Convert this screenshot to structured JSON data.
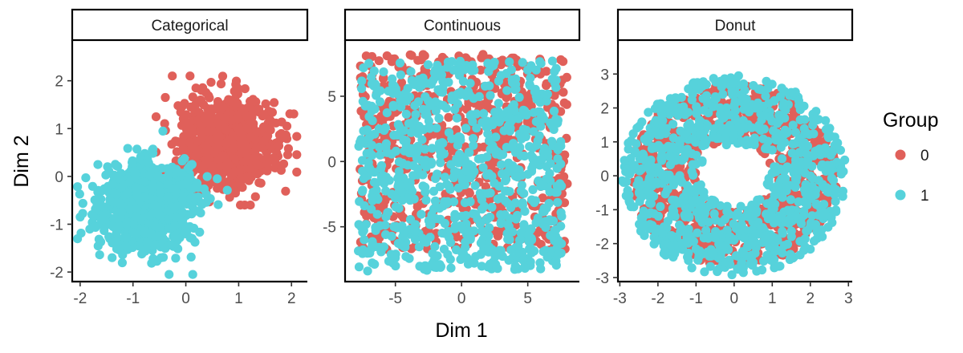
{
  "chart_data": {
    "type": "scatter",
    "xlabel": "Dim 1",
    "ylabel": "Dim 2",
    "legend": {
      "title": "Group",
      "placement": "right",
      "entries": [
        {
          "label": "0",
          "color": "#E0605A"
        },
        {
          "label": "1",
          "color": "#56D2DB"
        }
      ]
    },
    "panels": [
      {
        "title": "Categorical",
        "xlim": [
          -2.15,
          2.3
        ],
        "ylim": [
          -2.2,
          2.85
        ],
        "xticks": [
          -2,
          -1,
          0,
          1,
          2
        ],
        "yticks": [
          -2,
          -1,
          0,
          1,
          2
        ],
        "series": [
          {
            "group": "0",
            "color": "#E0605A",
            "distribution": "gaussian",
            "n": 900,
            "center": [
              0.8,
              0.7
            ],
            "sd": [
              0.45,
              0.45
            ],
            "extent": {
              "x": [
                -0.7,
                2.1
              ],
              "y": [
                -0.6,
                2.1
              ]
            }
          },
          {
            "group": "1",
            "color": "#56D2DB",
            "distribution": "gaussian",
            "n": 900,
            "center": [
              -0.75,
              -0.6
            ],
            "sd": [
              0.45,
              0.45
            ],
            "extent": {
              "x": [
                -2.05,
                0.8
              ],
              "y": [
                -2.05,
                1.3
              ]
            }
          }
        ]
      },
      {
        "title": "Continuous",
        "xlim": [
          -8.8,
          8.9
        ],
        "ylim": [
          -9.2,
          9.3
        ],
        "xticks": [
          -5,
          0,
          5
        ],
        "yticks": [
          -5,
          0,
          5
        ],
        "series": [
          {
            "group": "0",
            "color": "#E0605A",
            "distribution": "uniform",
            "n": 700,
            "extent": {
              "x": [
                -7.7,
                8.0
              ],
              "y": [
                -6.8,
                8.2
              ]
            }
          },
          {
            "group": "1",
            "color": "#56D2DB",
            "distribution": "uniform",
            "n": 800,
            "extent": {
              "x": [
                -7.8,
                7.6
              ],
              "y": [
                -8.4,
                7.7
              ]
            }
          }
        ]
      },
      {
        "title": "Donut",
        "xlim": [
          -3.05,
          3.1
        ],
        "ylim": [
          -3.12,
          4.0
        ],
        "xticks": [
          -3,
          -2,
          -1,
          0,
          1,
          2,
          3
        ],
        "yticks": [
          -3,
          -2,
          -1,
          0,
          1,
          2,
          3
        ],
        "series": [
          {
            "group": "0",
            "color": "#E0605A",
            "distribution": "annulus",
            "n": 900,
            "center": [
              0,
              0
            ],
            "radius": [
              1.0,
              2.7
            ]
          },
          {
            "group": "1",
            "color": "#56D2DB",
            "distribution": "annulus",
            "n": 900,
            "center": [
              0,
              0
            ],
            "radius": [
              0.9,
              2.95
            ]
          }
        ]
      }
    ]
  }
}
